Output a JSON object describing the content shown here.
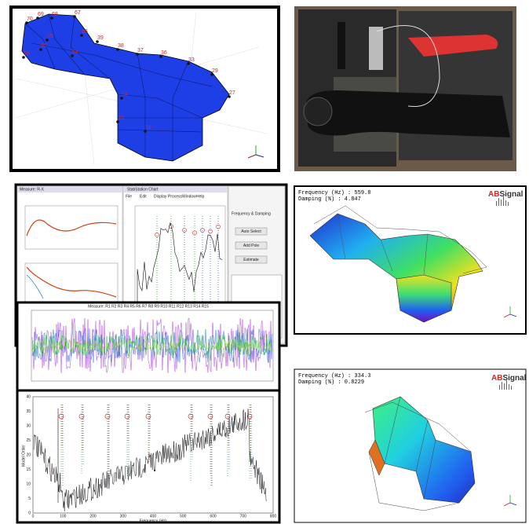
{
  "mesh": {
    "node_labels": [
      "70",
      "69",
      "68",
      "67",
      "66",
      "35",
      "65",
      "64",
      "39",
      "38",
      "37",
      "36",
      "33",
      "29",
      "27",
      "58",
      "14",
      "15",
      "18"
    ]
  },
  "app": {
    "left_title": "Measure: R-X",
    "middle_title": "StabStation Chart",
    "menu": [
      "File",
      "Edit",
      "Display",
      "Process",
      "Window",
      "Help"
    ],
    "panel_title": "Frequency & Damping",
    "buttons": [
      "Auto Select",
      "Add Pole",
      "Estimate"
    ]
  },
  "time_window": {
    "title": "Measure: R1 R2 R3 R4 R5 R6 R7 R8 R9 R10 R11 R12 R13 R14 R15"
  },
  "stab_chart": {
    "y_label": "Model Order",
    "x_label": "Frequency (Hz)",
    "xticks": [
      "0",
      "100",
      "200",
      "300",
      "400",
      "500",
      "600",
      "700",
      "800"
    ],
    "yticks": [
      "0",
      "5",
      "10",
      "15",
      "20",
      "25",
      "30",
      "35",
      "40"
    ]
  },
  "mode_a": {
    "frequency": "Frequency (Hz) : 559.8",
    "damping": "Damping (%) : 4.847",
    "logo": {
      "a": "AB",
      "b": "Signal"
    }
  },
  "mode_b": {
    "frequency": "Frequency (Hz) : 334.3",
    "damping": "Damping (%) : 0.8229",
    "logo": {
      "a": "AB",
      "b": "Signal"
    }
  }
}
